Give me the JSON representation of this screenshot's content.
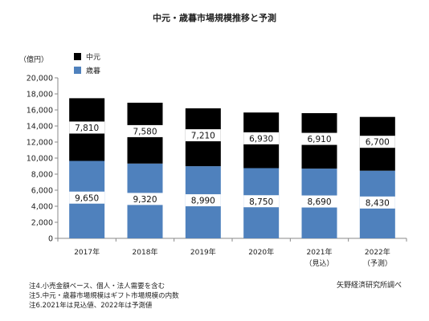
{
  "chart_data": {
    "type": "bar",
    "stacked": true,
    "title": "中元・歳暮市場規模推移と予測",
    "unit_label": "（億円）",
    "categories": [
      "2017年",
      "2018年",
      "2019年",
      "2020年",
      "2021年",
      "2022年"
    ],
    "category_sublabels": [
      "",
      "",
      "",
      "",
      "（見込）",
      "（予測）"
    ],
    "series": [
      {
        "name": "歳暮",
        "color": "#4f81bd",
        "values": [
          9650,
          9320,
          8990,
          8750,
          8690,
          8430
        ]
      },
      {
        "name": "中元",
        "color": "#000000",
        "values": [
          7810,
          7580,
          7210,
          6930,
          6910,
          6700
        ]
      }
    ],
    "value_labels": {
      "歳暮": [
        "9,650",
        "9,320",
        "8,990",
        "8,750",
        "8,690",
        "8,430"
      ],
      "中元": [
        "7,810",
        "7,580",
        "7,210",
        "6,930",
        "6,910",
        "6,700"
      ]
    },
    "ylim": [
      0,
      20000
    ],
    "yticks": [
      0,
      2000,
      4000,
      6000,
      8000,
      10000,
      12000,
      14000,
      16000,
      18000,
      20000
    ],
    "ytick_labels": [
      "0",
      "2,000",
      "4,000",
      "6,000",
      "8,000",
      "10,000",
      "12,000",
      "14,000",
      "16,000",
      "18,000",
      "20,000"
    ],
    "legend_placement": "top-left",
    "grid": false
  },
  "notes": [
    "注4.小売金額ベース、個人・法人需要を含む",
    "注5.中元・歳暮市場規模はギフト市場規模の内数",
    "注6.2021年は見込値、2022年は予測値"
  ],
  "source": "矢野経済研究所調べ"
}
